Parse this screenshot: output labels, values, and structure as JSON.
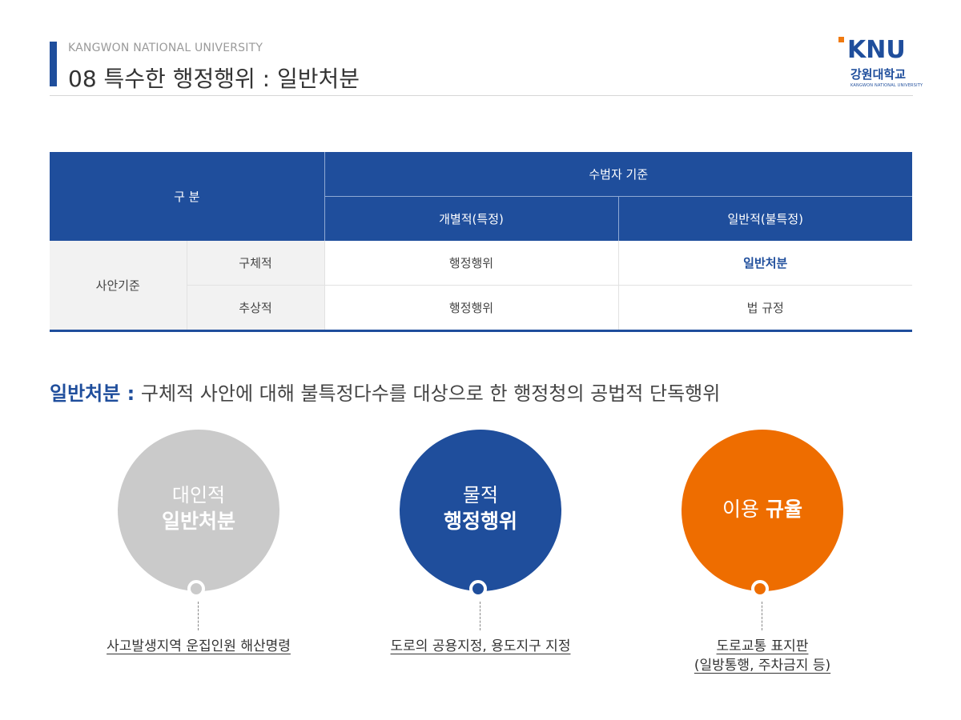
{
  "header": {
    "university": "KANGWON NATIONAL UNIVERSITY",
    "title": "08 특수한 행정행위 : 일반처분"
  },
  "logo": {
    "mark": "KNU",
    "korean": "강원대학교",
    "english": "KANGWON NATIONAL UNIVERSITY"
  },
  "table": {
    "header_category": "구 분",
    "header_group": "수범자 기준",
    "col1": "개별적(특정)",
    "col2": "일반적(불특정)",
    "row_group": "사안기준",
    "rows": [
      {
        "label": "구체적",
        "col1": "행정행위",
        "col2": "일반처분"
      },
      {
        "label": "추상적",
        "col1": "행정행위",
        "col2": "법 규정"
      }
    ]
  },
  "definition": {
    "term": "일반처분 :",
    "text": " 구체적 사안에 대해 불특정다수를 대상으로 한 행정청의 공법적 단독행위"
  },
  "circles": [
    {
      "line1": "대인적",
      "line2": "일반처분",
      "caption": "사고발생지역 운집인원 해산명령",
      "color": "#cacaca",
      "dot_color": "#cacaca"
    },
    {
      "line1": "물적",
      "line2": "행정행위",
      "caption": "도로의 공용지정, 용도지구 지정",
      "color": "#1f4e9c",
      "dot_color": "#1f4e9c"
    },
    {
      "line1": "이용",
      "line2": "규율",
      "caption_line1": "도로교통 표지판",
      "caption_line2": "(일방통행, 주차금지 등)",
      "color": "#ee6d00",
      "dot_color": "#ee6d00"
    }
  ]
}
